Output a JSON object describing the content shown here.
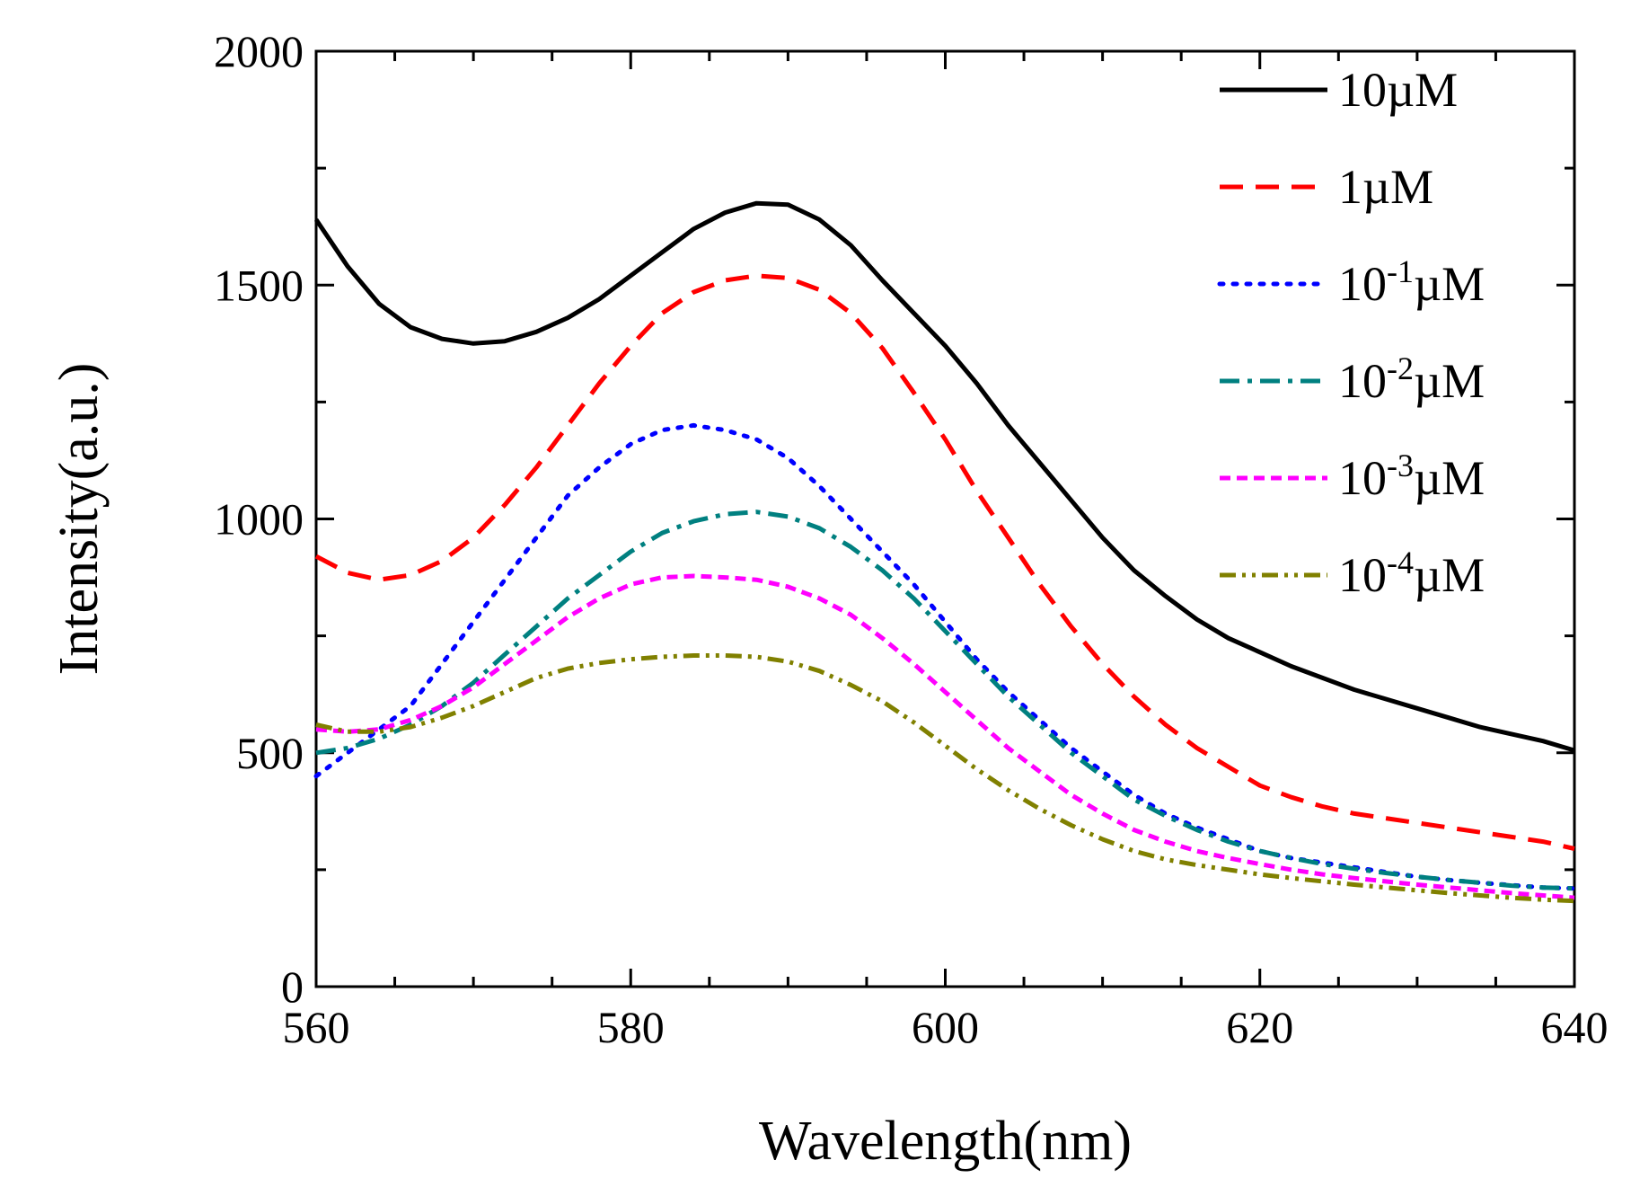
{
  "chart_data": {
    "type": "line",
    "xlabel": "Wavelength(nm)",
    "ylabel": "Intensity(a.u.)",
    "xlim": [
      560,
      640
    ],
    "ylim": [
      0,
      2000
    ],
    "x_major_ticks": [
      560,
      580,
      600,
      620,
      640
    ],
    "x_tick_labels": [
      "560",
      "580",
      "600",
      "620",
      "640"
    ],
    "y_major_ticks": [
      0,
      500,
      1000,
      1500,
      2000
    ],
    "y_tick_labels": [
      "0",
      "500",
      "1000",
      "1500",
      "2000"
    ],
    "legend_position": "top-right",
    "series": [
      {
        "name": "10µM",
        "base": "10",
        "exponent": "",
        "unit": "µM",
        "color": "#000000",
        "dash": "solid",
        "x": [
          560,
          562,
          564,
          566,
          568,
          570,
          572,
          574,
          576,
          578,
          580,
          582,
          584,
          586,
          588,
          590,
          592,
          594,
          596,
          598,
          600,
          602,
          604,
          606,
          608,
          610,
          612,
          614,
          616,
          618,
          620,
          622,
          624,
          626,
          628,
          630,
          632,
          634,
          636,
          638,
          640
        ],
        "y": [
          1640,
          1540,
          1460,
          1410,
          1385,
          1375,
          1380,
          1400,
          1430,
          1470,
          1520,
          1570,
          1620,
          1655,
          1675,
          1672,
          1640,
          1585,
          1510,
          1440,
          1370,
          1290,
          1200,
          1120,
          1040,
          960,
          890,
          835,
          785,
          745,
          715,
          685,
          660,
          635,
          615,
          595,
          575,
          555,
          540,
          525,
          505
        ]
      },
      {
        "name": "1µM",
        "base": "1",
        "exponent": "",
        "unit": "µM",
        "color": "#ff0000",
        "dash": "long-dash",
        "x": [
          560,
          562,
          564,
          566,
          568,
          570,
          572,
          574,
          576,
          578,
          580,
          582,
          584,
          586,
          588,
          590,
          592,
          594,
          596,
          598,
          600,
          602,
          604,
          606,
          608,
          610,
          612,
          614,
          616,
          618,
          620,
          622,
          624,
          626,
          628,
          630,
          632,
          634,
          636,
          638,
          640
        ],
        "y": [
          920,
          885,
          870,
          880,
          910,
          960,
          1030,
          1110,
          1200,
          1290,
          1370,
          1440,
          1485,
          1510,
          1520,
          1515,
          1490,
          1440,
          1365,
          1270,
          1170,
          1060,
          960,
          860,
          770,
          690,
          620,
          560,
          510,
          470,
          430,
          405,
          385,
          370,
          360,
          350,
          340,
          330,
          320,
          310,
          295
        ]
      },
      {
        "name": "10⁻¹µM",
        "base": "10",
        "exponent": "-1",
        "unit": "µM",
        "color": "#0000ff",
        "dash": "dotted",
        "x": [
          560,
          562,
          564,
          566,
          568,
          570,
          572,
          574,
          576,
          578,
          580,
          582,
          584,
          586,
          588,
          590,
          592,
          594,
          596,
          598,
          600,
          602,
          604,
          606,
          608,
          610,
          612,
          614,
          616,
          618,
          620,
          622,
          624,
          626,
          628,
          630,
          632,
          634,
          636,
          638,
          640
        ],
        "y": [
          450,
          500,
          550,
          600,
          690,
          780,
          870,
          960,
          1050,
          1110,
          1160,
          1190,
          1200,
          1190,
          1170,
          1130,
          1070,
          1000,
          930,
          860,
          780,
          700,
          630,
          570,
          510,
          460,
          410,
          370,
          340,
          315,
          290,
          275,
          265,
          255,
          245,
          235,
          228,
          222,
          217,
          212,
          210
        ]
      },
      {
        "name": "10⁻²µM",
        "base": "10",
        "exponent": "-2",
        "unit": "µM",
        "color": "#008080",
        "dash": "dash-dot",
        "x": [
          560,
          562,
          564,
          566,
          568,
          570,
          572,
          574,
          576,
          578,
          580,
          582,
          584,
          586,
          588,
          590,
          592,
          594,
          596,
          598,
          600,
          602,
          604,
          606,
          608,
          610,
          612,
          614,
          616,
          618,
          620,
          622,
          624,
          626,
          628,
          630,
          632,
          634,
          636,
          638,
          640
        ],
        "y": [
          500,
          510,
          530,
          560,
          600,
          650,
          710,
          770,
          830,
          880,
          930,
          970,
          995,
          1010,
          1015,
          1005,
          980,
          940,
          890,
          830,
          760,
          690,
          620,
          560,
          500,
          450,
          400,
          365,
          335,
          310,
          290,
          275,
          262,
          252,
          243,
          235,
          228,
          222,
          216,
          212,
          210
        ]
      },
      {
        "name": "10⁻³µM",
        "base": "10",
        "exponent": "-3",
        "unit": "µM",
        "color": "#ff00ff",
        "dash": "short-dash",
        "x": [
          560,
          562,
          564,
          566,
          568,
          570,
          572,
          574,
          576,
          578,
          580,
          582,
          584,
          586,
          588,
          590,
          592,
          594,
          596,
          598,
          600,
          602,
          604,
          606,
          608,
          610,
          612,
          614,
          616,
          618,
          620,
          622,
          624,
          626,
          628,
          630,
          632,
          634,
          636,
          638,
          640
        ],
        "y": [
          550,
          545,
          550,
          570,
          600,
          640,
          690,
          740,
          790,
          830,
          860,
          875,
          878,
          875,
          870,
          855,
          830,
          795,
          745,
          690,
          630,
          570,
          510,
          460,
          410,
          370,
          335,
          310,
          290,
          275,
          262,
          250,
          240,
          232,
          225,
          218,
          212,
          206,
          200,
          195,
          190
        ]
      },
      {
        "name": "10⁻⁴µM",
        "base": "10",
        "exponent": "-4",
        "unit": "µM",
        "color": "#808000",
        "dash": "dash-dot-dot",
        "x": [
          560,
          562,
          564,
          566,
          568,
          570,
          572,
          574,
          576,
          578,
          580,
          582,
          584,
          586,
          588,
          590,
          592,
          594,
          596,
          598,
          600,
          602,
          604,
          606,
          608,
          610,
          612,
          614,
          616,
          618,
          620,
          622,
          624,
          626,
          628,
          630,
          632,
          634,
          636,
          638,
          640
        ],
        "y": [
          560,
          545,
          545,
          555,
          575,
          600,
          630,
          660,
          680,
          692,
          700,
          705,
          708,
          708,
          705,
          695,
          675,
          645,
          610,
          565,
          515,
          465,
          420,
          380,
          345,
          315,
          290,
          272,
          260,
          250,
          240,
          232,
          225,
          218,
          212,
          206,
          200,
          195,
          190,
          186,
          183
        ]
      }
    ]
  }
}
